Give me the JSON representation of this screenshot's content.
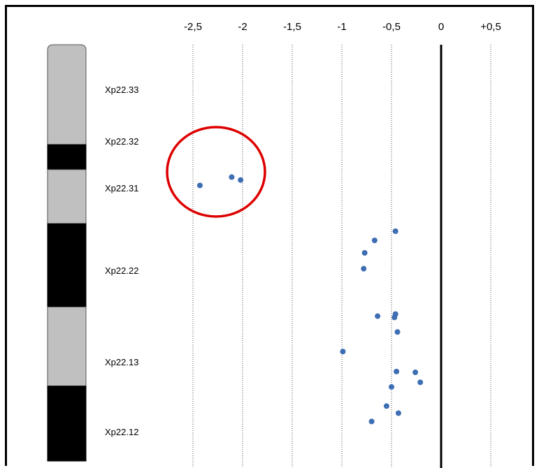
{
  "chart_data": {
    "type": "scatter",
    "title": "",
    "xlabel": "",
    "ylabel": "",
    "xlim": [
      -2.95,
      0.75
    ],
    "x_ticks": [
      {
        "value": -2.5,
        "label": "-2,5"
      },
      {
        "value": -2,
        "label": "-2"
      },
      {
        "value": -1.5,
        "label": "-1,5"
      },
      {
        "value": -1,
        "label": "-1"
      },
      {
        "value": -0.5,
        "label": "-0,5"
      },
      {
        "value": 0,
        "label": "0"
      },
      {
        "value": 0.5,
        "label": "+0,5"
      }
    ],
    "zero_line": true,
    "gridlines": "vertical dotted",
    "ideogram": {
      "chromosome": "X",
      "bands": [
        {
          "name": "Xp22.33",
          "stain": "gneg",
          "start": 0.0,
          "end": 0.24
        },
        {
          "name": "Xp22.32",
          "stain": "gpos",
          "start": 0.24,
          "end": 0.3
        },
        {
          "name": "Xp22.31",
          "stain": "gneg",
          "start": 0.3,
          "end": 0.43
        },
        {
          "name": "Xp22.22",
          "stain": "gpos",
          "start": 0.43,
          "end": 0.63
        },
        {
          "name": "Xp22.13",
          "stain": "gneg",
          "start": 0.63,
          "end": 0.82
        },
        {
          "name": "Xp22.12",
          "stain": "gpos",
          "start": 0.82,
          "end": 1.0
        }
      ]
    },
    "points": [
      {
        "x": -2.43,
        "y": 0.338
      },
      {
        "x": -2.11,
        "y": 0.318
      },
      {
        "x": -2.02,
        "y": 0.325
      },
      {
        "x": -0.46,
        "y": 0.448
      },
      {
        "x": -0.67,
        "y": 0.47
      },
      {
        "x": -0.77,
        "y": 0.5
      },
      {
        "x": -0.78,
        "y": 0.538
      },
      {
        "x": -0.46,
        "y": 0.647
      },
      {
        "x": -0.64,
        "y": 0.652
      },
      {
        "x": -0.47,
        "y": 0.655
      },
      {
        "x": -0.44,
        "y": 0.69
      },
      {
        "x": -0.99,
        "y": 0.737
      },
      {
        "x": -0.45,
        "y": 0.785
      },
      {
        "x": -0.26,
        "y": 0.787
      },
      {
        "x": -0.21,
        "y": 0.811
      },
      {
        "x": -0.5,
        "y": 0.822
      },
      {
        "x": -0.55,
        "y": 0.868
      },
      {
        "x": -0.43,
        "y": 0.885
      },
      {
        "x": -0.7,
        "y": 0.905
      }
    ],
    "highlight": {
      "type": "ellipse",
      "color": "#dd0000",
      "note": "circled cluster of points near x = -2 to -2.5"
    },
    "colors": {
      "points": "#3d6eb3",
      "gneg": "#c0c0c0",
      "gpos": "#000000",
      "zero_line": "#000000",
      "highlight": "#dd0000"
    }
  }
}
